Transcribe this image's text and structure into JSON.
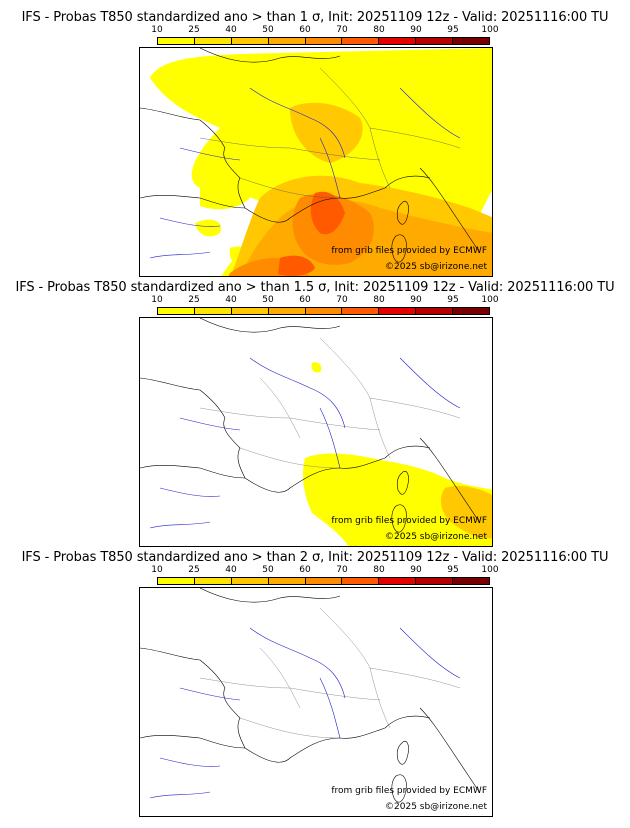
{
  "legend": {
    "labels": [
      "10",
      "25",
      "40",
      "50",
      "60",
      "70",
      "80",
      "90",
      "95",
      "100"
    ],
    "colors": [
      "#ffff00",
      "#ffe600",
      "#ffc800",
      "#ffaa00",
      "#ff8c00",
      "#ff5a00",
      "#e60000",
      "#b40000",
      "#780000"
    ]
  },
  "panels": [
    {
      "title": "IFS - Probas T850  standardized ano > than 1 σ, Init: 20251109 12z - Valid: 20251116:00 TU",
      "source_credit": "from grib files provided by ECMWF",
      "copyright": "©2025 sb@irizone.net"
    },
    {
      "title": "IFS - Probas T850  standardized ano > than 1.5 σ, Init: 20251109 12z - Valid: 20251116:00 TU",
      "source_credit": "from grib files provided by ECMWF",
      "copyright": "©2025 sb@irizone.net"
    },
    {
      "title": "IFS - Probas T850  standardized ano > than 2 σ, Init: 20251109 12z - Valid: 20251116:00 TU",
      "source_credit": "from grib files provided by ECMWF",
      "copyright": "©2025 sb@irizone.net"
    }
  ]
}
